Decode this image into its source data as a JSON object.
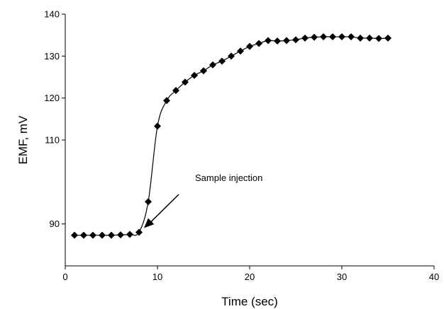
{
  "chart_data": {
    "type": "line",
    "title": "",
    "xlabel": "Time (sec)",
    "ylabel": "EMF, mV",
    "xlim": [
      0,
      40
    ],
    "ylim": [
      80,
      140
    ],
    "xticks": [
      0,
      10,
      20,
      30,
      40
    ],
    "yticks": [
      90,
      110,
      120,
      130,
      140
    ],
    "grid": false,
    "legend": "none",
    "marker": "diamond",
    "color": "#000000",
    "series": [
      {
        "x": [
          1,
          2,
          3,
          4,
          5,
          6,
          7,
          8,
          9,
          10,
          11,
          12,
          13,
          14,
          15,
          16,
          17,
          18,
          19,
          20,
          21,
          22,
          23,
          24,
          25,
          26,
          27,
          28,
          29,
          30,
          31,
          32,
          33,
          34,
          35
        ],
        "values": [
          87.3,
          87.3,
          87.3,
          87.3,
          87.3,
          87.4,
          87.5,
          88.0,
          95.3,
          113.3,
          119.4,
          121.8,
          123.8,
          125.4,
          126.5,
          127.9,
          128.8,
          130.0,
          131.2,
          132.3,
          133.0,
          133.7,
          133.6,
          133.7,
          133.9,
          134.3,
          134.5,
          134.6,
          134.6,
          134.6,
          134.6,
          134.3,
          134.3,
          134.2,
          134.3
        ]
      }
    ],
    "annotations": [
      {
        "text": "Sample injection",
        "x": 8,
        "y": 88
      }
    ]
  }
}
